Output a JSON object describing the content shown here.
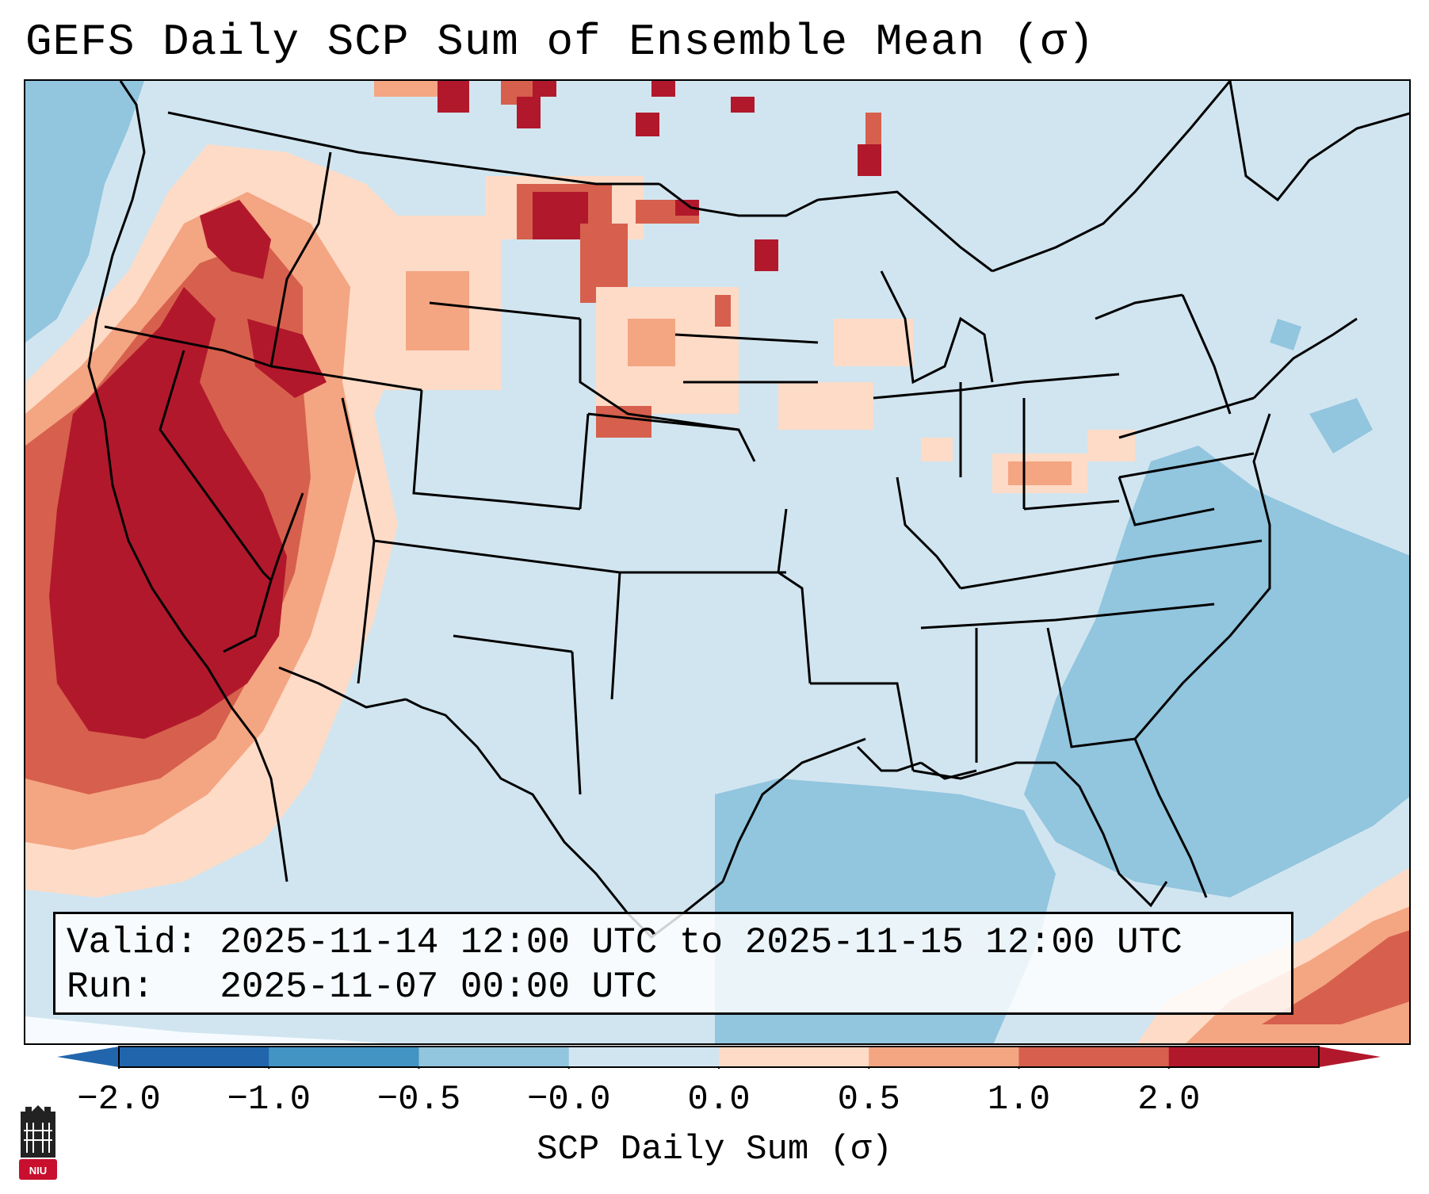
{
  "title": "GEFS Daily SCP Sum of Ensemble Mean (σ)",
  "info": {
    "valid_label": "Valid:",
    "valid_range": "2025-11-14 12:00 UTC to 2025-11-15 12:00 UTC",
    "run_label": "Run:",
    "run_time": "2025-11-07 00:00 UTC"
  },
  "colorbar": {
    "label": "SCP Daily Sum (σ)",
    "ticks": [
      "−2.0",
      "−1.0",
      "−0.5",
      "−0.0",
      "0.0",
      "0.5",
      "1.0",
      "2.0"
    ],
    "bin_colors": [
      "#2166ac",
      "#4393c3",
      "#92c5de",
      "#d1e5f0",
      "#fddbc7",
      "#f4a582",
      "#d6604d",
      "#b2182b"
    ],
    "under_color": "#2166ac",
    "over_color": "#b2182b"
  },
  "map": {
    "region": "Contiguous United States",
    "background_color": "#d1e5f0",
    "ocean_negative_color": "#92c5de",
    "highest_anomaly_color": "#b2182b"
  },
  "logo": {
    "text": "NIU",
    "color": "#c8102e"
  }
}
